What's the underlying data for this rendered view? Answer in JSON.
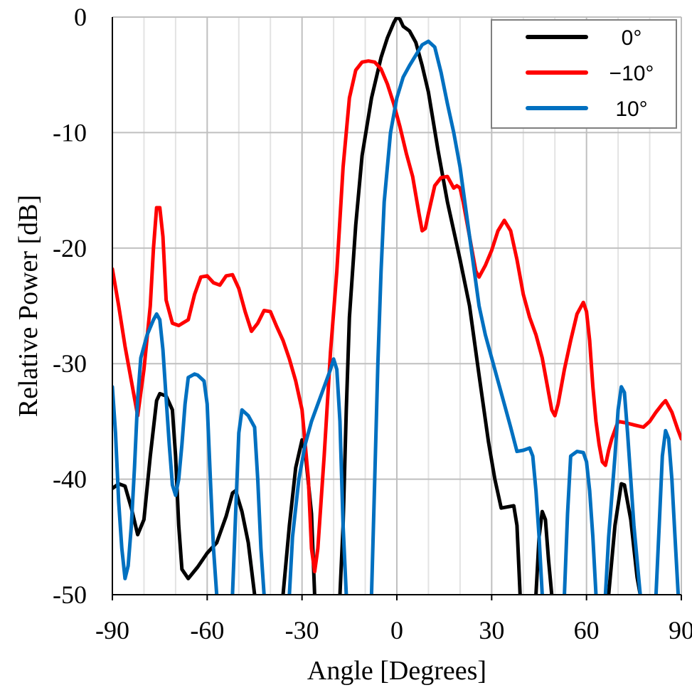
{
  "chart_data": {
    "type": "line",
    "title": "",
    "xlabel": "Angle [Degrees]",
    "ylabel": "Relative Power [dB]",
    "xlim": [
      -90,
      90
    ],
    "ylim": [
      -50,
      0
    ],
    "xticks": [
      -90,
      -60,
      -30,
      0,
      30,
      60,
      90
    ],
    "yticks": [
      0,
      -10,
      -20,
      -30,
      -40,
      -50
    ],
    "xtick_labels": [
      "-90",
      "-60",
      "-30",
      "0",
      "30",
      "60",
      "90"
    ],
    "ytick_labels": [
      "0",
      "-10",
      "-20",
      "-30",
      "-40",
      "-50"
    ],
    "grid": true,
    "legend_position": "top-right",
    "series": [
      {
        "name": "0°",
        "color": "#000000",
        "points": [
          [
            -90,
            -40.8
          ],
          [
            -88,
            -40.4
          ],
          [
            -86,
            -40.6
          ],
          [
            -84,
            -42.5
          ],
          [
            -82,
            -44.8
          ],
          [
            -80,
            -43.5
          ],
          [
            -78,
            -38.0
          ],
          [
            -76,
            -33.2
          ],
          [
            -75,
            -32.6
          ],
          [
            -73,
            -32.8
          ],
          [
            -71,
            -34.0
          ],
          [
            -70,
            -38.0
          ],
          [
            -69,
            -44.0
          ],
          [
            -68,
            -47.8
          ],
          [
            -66,
            -48.6
          ],
          [
            -63,
            -47.6
          ],
          [
            -60,
            -46.4
          ],
          [
            -57,
            -45.5
          ],
          [
            -54,
            -43.2
          ],
          [
            -52,
            -41.2
          ],
          [
            -51,
            -41.0
          ],
          [
            -49,
            -42.8
          ],
          [
            -47,
            -45.5
          ],
          [
            -45,
            -50
          ],
          [
            -45,
            null
          ],
          [
            -36,
            -50
          ],
          [
            -34,
            -44.0
          ],
          [
            -32,
            -39.0
          ],
          [
            -30,
            -36.6
          ],
          [
            -29,
            -37.6
          ],
          [
            -27,
            -43.0
          ],
          [
            -26,
            -50
          ],
          [
            -26,
            null
          ],
          [
            -18,
            -50
          ],
          [
            -17,
            -44.0
          ],
          [
            -16,
            -34.0
          ],
          [
            -15,
            -26.0
          ],
          [
            -13,
            -18.0
          ],
          [
            -11,
            -12.0
          ],
          [
            -8,
            -7.0
          ],
          [
            -5,
            -3.5
          ],
          [
            -3,
            -1.8
          ],
          [
            -1,
            -0.5
          ],
          [
            0,
            0
          ],
          [
            1,
            -0.2
          ],
          [
            2,
            -0.8
          ],
          [
            4,
            -1.2
          ],
          [
            6,
            -2.2
          ],
          [
            8,
            -4.2
          ],
          [
            10,
            -6.5
          ],
          [
            13,
            -11.5
          ],
          [
            16,
            -16.0
          ],
          [
            20,
            -21.0
          ],
          [
            23,
            -25.0
          ],
          [
            26,
            -31.0
          ],
          [
            29,
            -36.8
          ],
          [
            31,
            -40.0
          ],
          [
            33,
            -42.5
          ],
          [
            35,
            -42.4
          ],
          [
            37,
            -42.3
          ],
          [
            38,
            -44.0
          ],
          [
            39,
            -50
          ],
          [
            39,
            null
          ],
          [
            44,
            -50
          ],
          [
            45,
            -45.0
          ],
          [
            46,
            -42.8
          ],
          [
            47,
            -43.5
          ],
          [
            48,
            -47.0
          ],
          [
            49,
            -50
          ],
          [
            49,
            null
          ],
          [
            67,
            -50
          ],
          [
            69,
            -44.0
          ],
          [
            71,
            -40.4
          ],
          [
            72,
            -40.5
          ],
          [
            74,
            -43.5
          ],
          [
            76,
            -48.5
          ],
          [
            77,
            -50
          ]
        ]
      },
      {
        "name": "−10°",
        "color": "#ff0000",
        "points": [
          [
            -90,
            -21.8
          ],
          [
            -88,
            -25.0
          ],
          [
            -86,
            -28.5
          ],
          [
            -84,
            -31.5
          ],
          [
            -82,
            -34.5
          ],
          [
            -80,
            -30.5
          ],
          [
            -78,
            -25.0
          ],
          [
            -77,
            -20.0
          ],
          [
            -76,
            -16.5
          ],
          [
            -75,
            -16.5
          ],
          [
            -74,
            -19.0
          ],
          [
            -73,
            -24.5
          ],
          [
            -71,
            -26.5
          ],
          [
            -69,
            -26.7
          ],
          [
            -66,
            -26.2
          ],
          [
            -64,
            -24.0
          ],
          [
            -62,
            -22.5
          ],
          [
            -60,
            -22.4
          ],
          [
            -58,
            -23.0
          ],
          [
            -56,
            -23.2
          ],
          [
            -54,
            -22.4
          ],
          [
            -52,
            -22.3
          ],
          [
            -50,
            -23.5
          ],
          [
            -48,
            -25.5
          ],
          [
            -46,
            -27.2
          ],
          [
            -44,
            -26.5
          ],
          [
            -42,
            -25.4
          ],
          [
            -40,
            -25.5
          ],
          [
            -38,
            -26.8
          ],
          [
            -36,
            -28.0
          ],
          [
            -34,
            -29.6
          ],
          [
            -32,
            -31.5
          ],
          [
            -30,
            -34.0
          ],
          [
            -28,
            -40.0
          ],
          [
            -27,
            -46.0
          ],
          [
            -26,
            -48.0
          ],
          [
            -25,
            -46.0
          ],
          [
            -23,
            -38.0
          ],
          [
            -21,
            -29.0
          ],
          [
            -19,
            -22.0
          ],
          [
            -17,
            -13.0
          ],
          [
            -15,
            -7.0
          ],
          [
            -13,
            -4.6
          ],
          [
            -11,
            -3.9
          ],
          [
            -9,
            -3.8
          ],
          [
            -7,
            -3.9
          ],
          [
            -5,
            -4.5
          ],
          [
            -3,
            -5.8
          ],
          [
            -1,
            -7.5
          ],
          [
            1,
            -9.5
          ],
          [
            3,
            -11.8
          ],
          [
            5,
            -13.8
          ],
          [
            7,
            -17.0
          ],
          [
            8,
            -18.5
          ],
          [
            9,
            -18.3
          ],
          [
            10,
            -17.0
          ],
          [
            12,
            -14.6
          ],
          [
            14,
            -13.9
          ],
          [
            16,
            -13.8
          ],
          [
            18,
            -14.8
          ],
          [
            19,
            -14.6
          ],
          [
            20,
            -14.8
          ],
          [
            21,
            -16.0
          ],
          [
            23,
            -19.0
          ],
          [
            25,
            -22.0
          ],
          [
            26,
            -22.5
          ],
          [
            28,
            -21.5
          ],
          [
            30,
            -20.2
          ],
          [
            32,
            -18.5
          ],
          [
            34,
            -17.6
          ],
          [
            36,
            -18.5
          ],
          [
            38,
            -21.0
          ],
          [
            40,
            -24.0
          ],
          [
            42,
            -26.0
          ],
          [
            44,
            -27.5
          ],
          [
            46,
            -29.5
          ],
          [
            48,
            -32.5
          ],
          [
            49,
            -34.0
          ],
          [
            50,
            -34.5
          ],
          [
            51,
            -33.5
          ],
          [
            53,
            -30.5
          ],
          [
            55,
            -28.0
          ],
          [
            57,
            -25.7
          ],
          [
            59,
            -24.7
          ],
          [
            60,
            -25.5
          ],
          [
            61,
            -28.0
          ],
          [
            62,
            -32.0
          ],
          [
            63,
            -35.0
          ],
          [
            64,
            -37.0
          ],
          [
            65,
            -38.5
          ],
          [
            66,
            -38.8
          ],
          [
            67,
            -37.5
          ],
          [
            68,
            -36.5
          ],
          [
            70,
            -35.0
          ],
          [
            72,
            -35.1
          ],
          [
            75,
            -35.3
          ],
          [
            78,
            -35.5
          ],
          [
            80,
            -35.0
          ],
          [
            82,
            -34.2
          ],
          [
            84,
            -33.5
          ],
          [
            85,
            -33.2
          ],
          [
            87,
            -34.2
          ],
          [
            89,
            -35.8
          ],
          [
            90,
            -36.5
          ]
        ]
      },
      {
        "name": "10°",
        "color": "#0070c0",
        "points": [
          [
            -90,
            -32.0
          ],
          [
            -89,
            -36.0
          ],
          [
            -88,
            -42.0
          ],
          [
            -87,
            -46.0
          ],
          [
            -86,
            -48.6
          ],
          [
            -85,
            -47.5
          ],
          [
            -84,
            -44.0
          ],
          [
            -83,
            -39.0
          ],
          [
            -82,
            -33.0
          ],
          [
            -81,
            -29.5
          ],
          [
            -79,
            -27.5
          ],
          [
            -77,
            -26.2
          ],
          [
            -76,
            -25.7
          ],
          [
            -75,
            -26.2
          ],
          [
            -74,
            -28.8
          ],
          [
            -73,
            -33.0
          ],
          [
            -72,
            -37.0
          ],
          [
            -71,
            -40.5
          ],
          [
            -70,
            -41.4
          ],
          [
            -69,
            -40.0
          ],
          [
            -68,
            -37.0
          ],
          [
            -67,
            -33.5
          ],
          [
            -66,
            -31.2
          ],
          [
            -64,
            -30.9
          ],
          [
            -63,
            -31.0
          ],
          [
            -61,
            -31.5
          ],
          [
            -60,
            -33.5
          ],
          [
            -59,
            -40.0
          ],
          [
            -58,
            -46.0
          ],
          [
            -57,
            -50
          ],
          [
            -57,
            null
          ],
          [
            -52,
            -50
          ],
          [
            -51,
            -43.0
          ],
          [
            -50,
            -36.0
          ],
          [
            -49,
            -34.0
          ],
          [
            -47,
            -34.5
          ],
          [
            -45,
            -35.5
          ],
          [
            -44,
            -40.0
          ],
          [
            -43,
            -46.0
          ],
          [
            -42,
            -50
          ],
          [
            -42,
            null
          ],
          [
            -34,
            -50
          ],
          [
            -33,
            -45.0
          ],
          [
            -31,
            -40.0
          ],
          [
            -29,
            -37.0
          ],
          [
            -27,
            -35.0
          ],
          [
            -25,
            -33.5
          ],
          [
            -23,
            -32.0
          ],
          [
            -21,
            -30.5
          ],
          [
            -20,
            -29.6
          ],
          [
            -19,
            -30.5
          ],
          [
            -18,
            -35.0
          ],
          [
            -17,
            -44.0
          ],
          [
            -16,
            -50
          ],
          [
            -16,
            null
          ],
          [
            -8,
            -50
          ],
          [
            -7,
            -40.0
          ],
          [
            -6,
            -30.0
          ],
          [
            -5,
            -22.0
          ],
          [
            -4,
            -16.0
          ],
          [
            -2,
            -10.0
          ],
          [
            0,
            -7.0
          ],
          [
            2,
            -5.2
          ],
          [
            4,
            -4.2
          ],
          [
            6,
            -3.3
          ],
          [
            8,
            -2.4
          ],
          [
            10,
            -2.1
          ],
          [
            12,
            -2.6
          ],
          [
            14,
            -4.8
          ],
          [
            16,
            -7.5
          ],
          [
            18,
            -10.0
          ],
          [
            20,
            -13.0
          ],
          [
            22,
            -17.0
          ],
          [
            24,
            -21.0
          ],
          [
            26,
            -25.0
          ],
          [
            28,
            -27.5
          ],
          [
            30,
            -29.5
          ],
          [
            32,
            -31.5
          ],
          [
            34,
            -33.5
          ],
          [
            36,
            -35.5
          ],
          [
            38,
            -37.6
          ],
          [
            40,
            -37.5
          ],
          [
            42,
            -37.3
          ],
          [
            43,
            -38.0
          ],
          [
            44,
            -41.0
          ],
          [
            45,
            -45.0
          ],
          [
            46,
            -50
          ],
          [
            46,
            null
          ],
          [
            53,
            -50
          ],
          [
            54,
            -43.0
          ],
          [
            55,
            -38.0
          ],
          [
            57,
            -37.6
          ],
          [
            59,
            -37.7
          ],
          [
            60,
            -38.5
          ],
          [
            61,
            -41.0
          ],
          [
            62,
            -45.0
          ],
          [
            63,
            -50
          ],
          [
            63,
            null
          ],
          [
            66,
            -50
          ],
          [
            67,
            -45.0
          ],
          [
            69,
            -38.0
          ],
          [
            70,
            -34.0
          ],
          [
            71,
            -32.0
          ],
          [
            72,
            -32.5
          ],
          [
            73,
            -36.0
          ],
          [
            74,
            -40.0
          ],
          [
            75,
            -44.0
          ],
          [
            76,
            -47.0
          ],
          [
            77,
            -50
          ],
          [
            77,
            null
          ],
          [
            82,
            -50
          ],
          [
            83,
            -44.0
          ],
          [
            84,
            -38.0
          ],
          [
            85,
            -35.8
          ],
          [
            86,
            -36.5
          ],
          [
            87,
            -40.0
          ],
          [
            88,
            -45.0
          ],
          [
            89,
            -50
          ]
        ]
      }
    ]
  }
}
